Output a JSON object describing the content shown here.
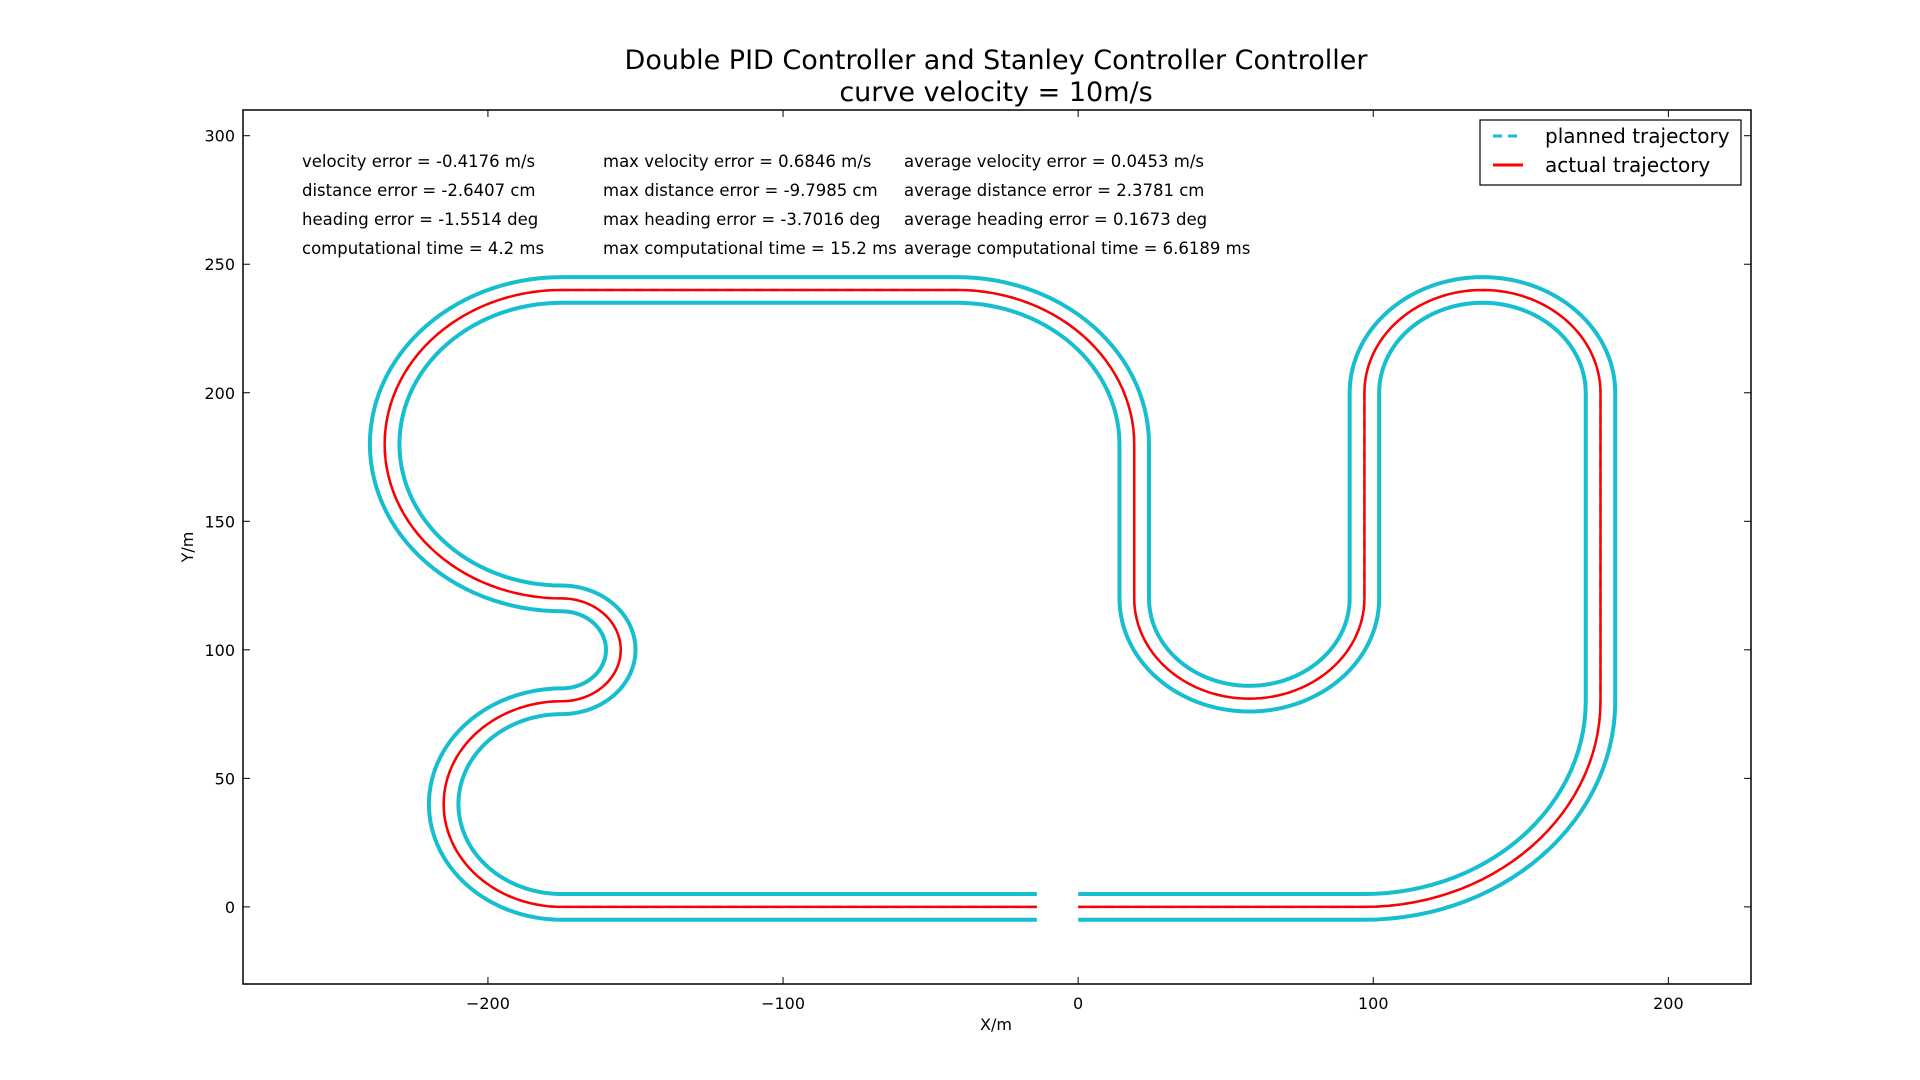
{
  "chart_data": {
    "type": "line",
    "title": "Double PID Controller and Stanley Controller Controller",
    "subtitle": "curve velocity = 10m/s",
    "xlabel": "X/m",
    "ylabel": "Y/m",
    "xlim": [
      -283,
      228
    ],
    "ylim": [
      -30,
      310
    ],
    "xticks": [
      -200,
      -100,
      0,
      100,
      200
    ],
    "xtick_labels": [
      "−200",
      "−100",
      "0",
      "100",
      "200"
    ],
    "yticks": [
      0,
      50,
      100,
      150,
      200,
      250,
      300
    ],
    "ytick_labels": [
      "0",
      "50",
      "100",
      "150",
      "200",
      "250",
      "300"
    ],
    "legend": {
      "position": "top-right",
      "entries": [
        {
          "label": "planned trajectory",
          "style": "dashed",
          "color": "#17becf"
        },
        {
          "label": "actual trajectory",
          "style": "solid",
          "color": "#ff0000"
        }
      ]
    },
    "track_half_width": 5,
    "track_color": "#17becf",
    "actual_color": "#ff0000",
    "series": [
      {
        "name": "planned trajectory",
        "color": "#17becf",
        "segments": [
          {
            "kind": "line",
            "from": [
              -14,
              0
            ],
            "to": [
              -175,
              0
            ]
          },
          {
            "kind": "arc",
            "center": [
              -175,
              40
            ],
            "radius": 40,
            "start_deg": -90,
            "end_deg": -270
          },
          {
            "kind": "arc",
            "center": [
              -175,
              100
            ],
            "radius": 20,
            "start_deg": -90,
            "end_deg": 90
          },
          {
            "kind": "arc",
            "center": [
              -175,
              180
            ],
            "radius": 60,
            "start_deg": -90,
            "end_deg": -270
          },
          {
            "kind": "line",
            "from": [
              -175,
              240
            ],
            "to": [
              -41,
              240
            ]
          },
          {
            "kind": "arc",
            "center": [
              -41,
              180
            ],
            "radius": 60,
            "start_deg": 90,
            "end_deg": 0
          },
          {
            "kind": "line",
            "from": [
              19,
              180
            ],
            "to": [
              19,
              120
            ]
          },
          {
            "kind": "arc",
            "center": [
              58,
              120
            ],
            "radius": 39,
            "start_deg": 180,
            "end_deg": 360
          },
          {
            "kind": "line",
            "from": [
              97,
              120
            ],
            "to": [
              97,
              200
            ]
          },
          {
            "kind": "arc",
            "center": [
              137,
              200
            ],
            "radius": 40,
            "start_deg": 180,
            "end_deg": 0
          },
          {
            "kind": "line",
            "from": [
              177,
              200
            ],
            "to": [
              177,
              80
            ]
          },
          {
            "kind": "arc",
            "center": [
              97,
              80
            ],
            "radius": 80,
            "start_deg": 0,
            "end_deg": -90
          },
          {
            "kind": "line",
            "from": [
              97,
              0
            ],
            "to": [
              0,
              0
            ]
          }
        ]
      },
      {
        "name": "actual trajectory",
        "color": "#ff0000",
        "follows": "planned trajectory"
      }
    ],
    "annotations": [
      [
        "velocity error = -0.4176 m/s",
        "max velocity error = 0.6846 m/s",
        "average velocity error = 0.0453 m/s"
      ],
      [
        "distance error = -2.6407 cm",
        "max distance error = -9.7985 cm",
        "average distance error = 2.3781 cm"
      ],
      [
        "heading error = -1.5514 deg",
        "max heading error = -3.7016 deg",
        "average heading error = 0.1673 deg"
      ],
      [
        "computational time = 4.2 ms",
        "max computational time = 15.2 ms",
        "average computational time = 6.6189 ms"
      ]
    ]
  }
}
